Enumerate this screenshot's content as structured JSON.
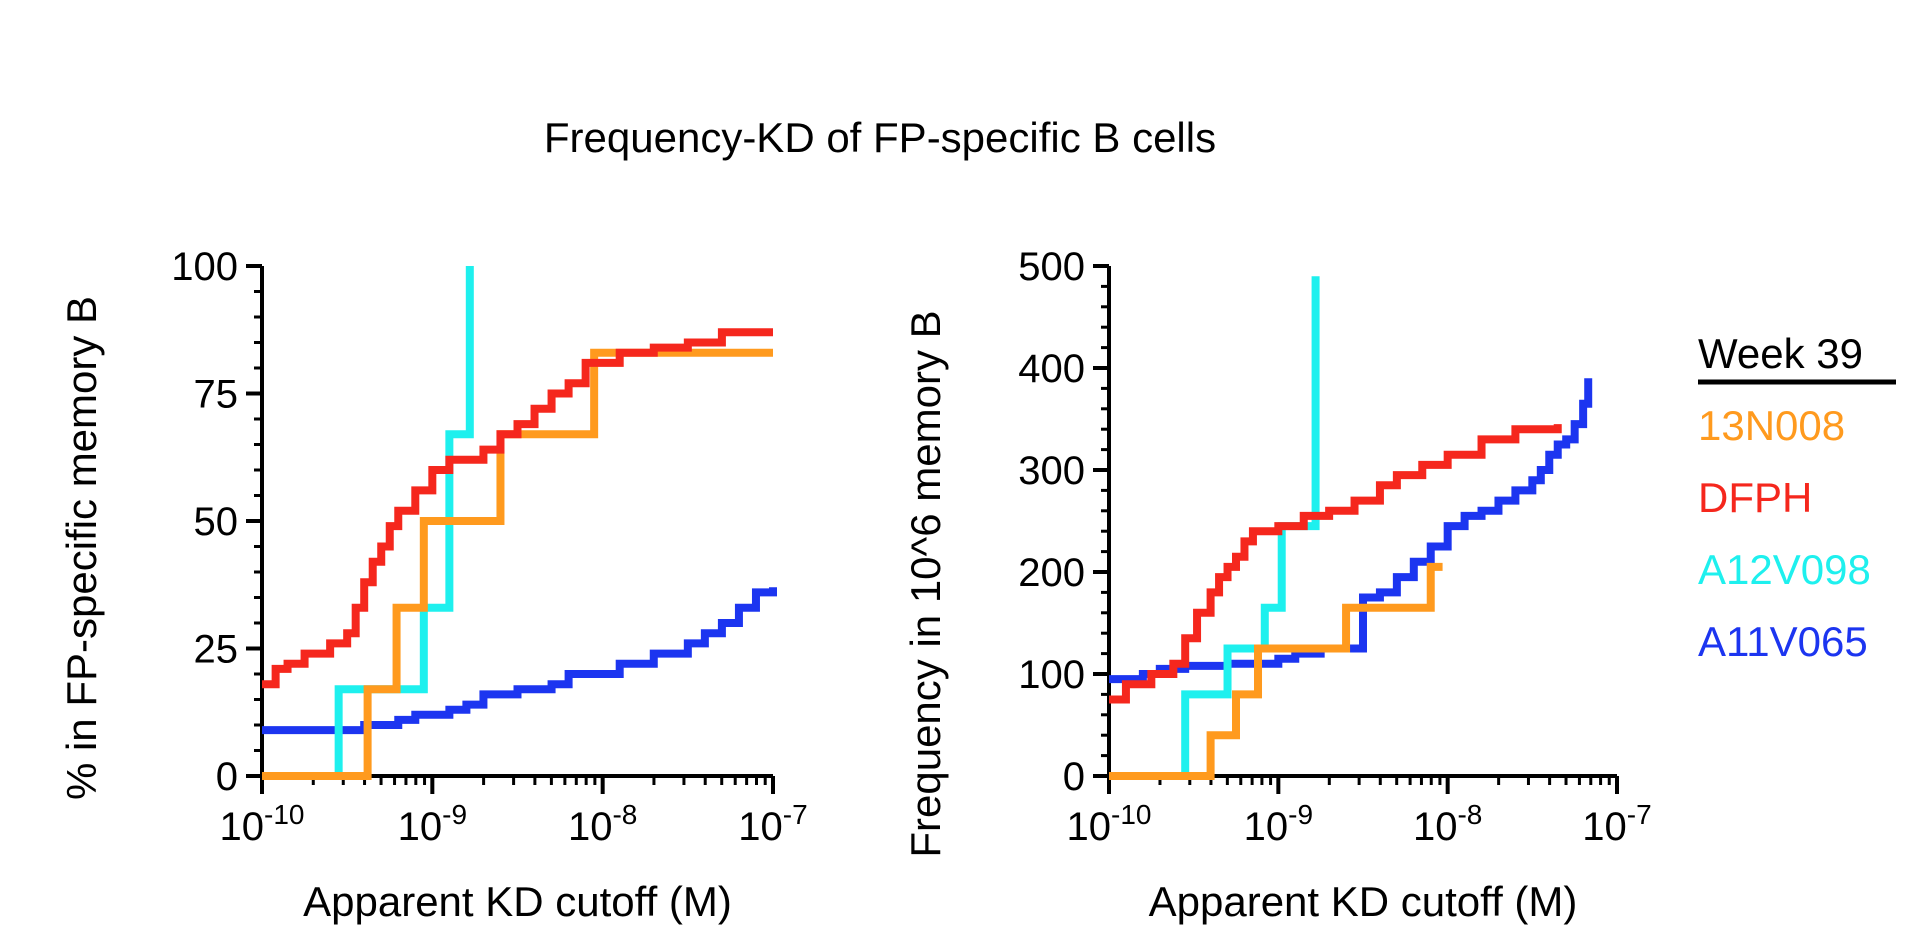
{
  "title": "Frequency-KD of FP-specific B cells",
  "legend": {
    "title": "Week 39",
    "entries": [
      {
        "name": "13N008",
        "color": "#FF9A1E"
      },
      {
        "name": "DFPH",
        "color": "#F5271D"
      },
      {
        "name": "A12V098",
        "color": "#1EF0EE"
      },
      {
        "name": "A11V065",
        "color": "#1C35F0"
      }
    ]
  },
  "chart_data": [
    {
      "type": "line",
      "step": true,
      "xscale": "log10",
      "xlabel": "Apparent KD cutoff (M)",
      "ylabel": "% in FP-specific memory B",
      "xlim_exp": [
        -10,
        -7
      ],
      "ylim": [
        0,
        100
      ],
      "yticks": [
        "0",
        "25",
        "50",
        "75",
        "100"
      ],
      "xtick_exps": [
        "-10",
        "-9",
        "-8",
        "-7"
      ],
      "series": [
        {
          "name": "A11V065",
          "color": "#1C35F0",
          "log10_x": [
            -10.0,
            -9.5,
            -9.4,
            -9.2,
            -9.1,
            -8.9,
            -8.8,
            -8.7,
            -8.5,
            -8.3,
            -8.2,
            -7.9,
            -7.7,
            -7.5,
            -7.4,
            -7.3,
            -7.2,
            -7.1,
            -7.0
          ],
          "y": [
            9,
            9,
            10,
            11,
            12,
            13,
            14,
            16,
            17,
            18,
            20,
            22,
            24,
            26,
            28,
            30,
            33,
            36,
            37
          ]
        },
        {
          "name": "A12V098",
          "color": "#1EF0EE",
          "log10_x": [
            -10.0,
            -9.55,
            -9.55,
            -9.05,
            -9.05,
            -8.9,
            -8.9,
            -8.78,
            -8.78,
            -8.78
          ],
          "y": [
            0,
            0,
            17,
            17,
            33,
            33,
            67,
            67,
            85,
            100
          ]
        },
        {
          "name": "13N008",
          "color": "#FF9A1E",
          "log10_x": [
            -10.0,
            -9.38,
            -9.38,
            -9.21,
            -9.21,
            -9.05,
            -9.05,
            -8.6,
            -8.6,
            -8.05,
            -8.05,
            -7.0
          ],
          "y": [
            0,
            0,
            17,
            17,
            33,
            33,
            50,
            50,
            67,
            67,
            83,
            83
          ]
        },
        {
          "name": "DFPH",
          "color": "#F5271D",
          "log10_x": [
            -10.0,
            -9.92,
            -9.85,
            -9.75,
            -9.6,
            -9.5,
            -9.45,
            -9.4,
            -9.35,
            -9.3,
            -9.25,
            -9.2,
            -9.1,
            -9.0,
            -8.9,
            -8.7,
            -8.6,
            -8.5,
            -8.4,
            -8.3,
            -8.2,
            -8.1,
            -7.9,
            -7.7,
            -7.5,
            -7.3,
            -7.0
          ],
          "y": [
            18,
            21,
            22,
            24,
            26,
            28,
            33,
            38,
            42,
            45,
            49,
            52,
            56,
            60,
            62,
            64,
            67,
            69,
            72,
            75,
            77,
            81,
            83,
            84,
            85,
            87,
            87
          ]
        }
      ]
    },
    {
      "type": "line",
      "step": true,
      "xscale": "log10",
      "xlabel": "Apparent KD cutoff (M)",
      "ylabel": "Frequency in 10^6 memory B",
      "xlim_exp": [
        -10,
        -7
      ],
      "ylim": [
        0,
        500
      ],
      "yticks": [
        "0",
        "100",
        "200",
        "300",
        "400",
        "500"
      ],
      "xtick_exps": [
        "-10",
        "-9",
        "-8",
        "-7"
      ],
      "series": [
        {
          "name": "A11V065",
          "color": "#1C35F0",
          "log10_x": [
            -10.0,
            -9.8,
            -9.7,
            -9.55,
            -9.3,
            -9.0,
            -8.9,
            -8.75,
            -8.5,
            -8.4,
            -8.3,
            -8.2,
            -8.1,
            -8.0,
            -7.9,
            -7.8,
            -7.7,
            -7.6,
            -7.5,
            -7.45,
            -7.4,
            -7.35,
            -7.3,
            -7.25,
            -7.2,
            -7.17
          ],
          "y": [
            95,
            100,
            105,
            108,
            110,
            115,
            120,
            125,
            175,
            180,
            195,
            210,
            225,
            245,
            255,
            260,
            270,
            280,
            290,
            300,
            315,
            325,
            330,
            345,
            365,
            390
          ]
        },
        {
          "name": "A12V098",
          "color": "#1EF0EE",
          "log10_x": [
            -10.0,
            -9.55,
            -9.55,
            -9.3,
            -9.3,
            -9.08,
            -9.08,
            -8.98,
            -8.98,
            -8.78,
            -8.78,
            -8.78
          ],
          "y": [
            0,
            0,
            80,
            80,
            125,
            125,
            165,
            165,
            245,
            245,
            330,
            490
          ]
        },
        {
          "name": "13N008",
          "color": "#FF9A1E",
          "log10_x": [
            -10.0,
            -9.4,
            -9.4,
            -9.25,
            -9.25,
            -9.12,
            -9.12,
            -8.6,
            -8.6,
            -8.1,
            -8.1,
            -8.03
          ],
          "y": [
            0,
            0,
            40,
            40,
            80,
            80,
            125,
            125,
            165,
            165,
            205,
            205
          ]
        },
        {
          "name": "DFPH",
          "color": "#F5271D",
          "log10_x": [
            -10.0,
            -9.9,
            -9.75,
            -9.62,
            -9.55,
            -9.48,
            -9.4,
            -9.35,
            -9.3,
            -9.25,
            -9.2,
            -9.15,
            -9.0,
            -8.85,
            -8.7,
            -8.55,
            -8.4,
            -8.3,
            -8.15,
            -8.0,
            -7.8,
            -7.6,
            -7.35
          ],
          "y": [
            75,
            90,
            100,
            110,
            135,
            160,
            180,
            195,
            205,
            215,
            230,
            240,
            245,
            255,
            260,
            270,
            285,
            295,
            305,
            315,
            330,
            340,
            345
          ]
        }
      ]
    }
  ]
}
